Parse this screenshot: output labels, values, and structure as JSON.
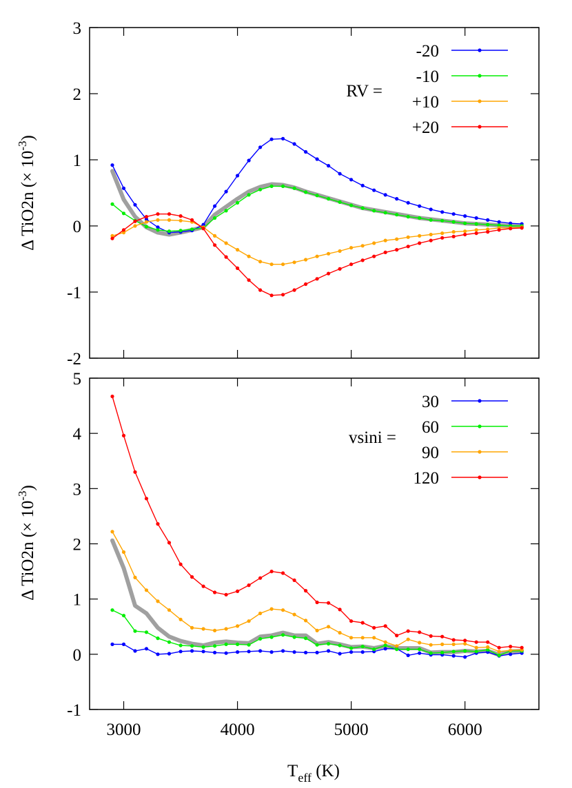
{
  "figure": {
    "xlabel_main": "T",
    "xlabel_sub": "eff",
    "xlabel_unit": " (K)"
  },
  "chart_data": [
    {
      "type": "line",
      "ylabel": "Δ TiO2n (× 10⁻³)",
      "ylabel_parts": {
        "main": "Δ TiO2n (× 10",
        "sup": "-3",
        "end": ")"
      },
      "xlim": [
        2700,
        6650
      ],
      "ylim": [
        -2,
        3
      ],
      "xticks": [
        3000,
        4000,
        5000,
        6000
      ],
      "yticks": [
        -2,
        -1,
        0,
        1,
        2,
        3
      ],
      "ytick_labels": [
        "-2",
        "-1",
        "0",
        "1",
        "2",
        "3"
      ],
      "legend_title": "RV =",
      "legend_position": "top-right",
      "x": [
        2900,
        3000,
        3100,
        3200,
        3300,
        3400,
        3500,
        3600,
        3700,
        3800,
        3900,
        4000,
        4100,
        4200,
        4300,
        4400,
        4500,
        4600,
        4700,
        4800,
        4900,
        5000,
        5100,
        5200,
        5300,
        5400,
        5500,
        5600,
        5700,
        5800,
        5900,
        6000,
        6100,
        6200,
        6300,
        6400,
        6500
      ],
      "series": [
        {
          "name": "-20",
          "color": "#0000ff",
          "values": [
            0.92,
            0.57,
            0.32,
            0.1,
            -0.02,
            -0.1,
            -0.09,
            -0.07,
            0.02,
            0.3,
            0.52,
            0.76,
            0.99,
            1.19,
            1.31,
            1.32,
            1.24,
            1.12,
            1.01,
            0.91,
            0.79,
            0.7,
            0.61,
            0.54,
            0.47,
            0.41,
            0.35,
            0.3,
            0.25,
            0.21,
            0.18,
            0.15,
            0.12,
            0.09,
            0.06,
            0.04,
            0.03
          ]
        },
        {
          "name": "-10",
          "color": "#00ee00",
          "values": [
            0.33,
            0.19,
            0.08,
            -0.01,
            -0.06,
            -0.08,
            -0.07,
            -0.05,
            -0.03,
            0.12,
            0.23,
            0.35,
            0.47,
            0.55,
            0.6,
            0.6,
            0.57,
            0.51,
            0.46,
            0.41,
            0.36,
            0.31,
            0.27,
            0.23,
            0.2,
            0.17,
            0.14,
            0.12,
            0.09,
            0.08,
            0.06,
            0.04,
            0.03,
            0.02,
            0.01,
            0.0,
            0.0
          ]
        },
        {
          "name": "+10",
          "color": "#ffa500",
          "values": [
            -0.15,
            -0.1,
            0.0,
            0.06,
            0.09,
            0.09,
            0.08,
            0.06,
            -0.02,
            -0.15,
            -0.26,
            -0.36,
            -0.46,
            -0.54,
            -0.58,
            -0.58,
            -0.55,
            -0.51,
            -0.46,
            -0.42,
            -0.38,
            -0.33,
            -0.3,
            -0.26,
            -0.22,
            -0.2,
            -0.17,
            -0.15,
            -0.13,
            -0.11,
            -0.09,
            -0.08,
            -0.06,
            -0.05,
            -0.03,
            -0.03,
            -0.02
          ]
        },
        {
          "name": "+20",
          "color": "#ff0000",
          "values": [
            -0.19,
            -0.06,
            0.07,
            0.14,
            0.18,
            0.18,
            0.15,
            0.09,
            -0.04,
            -0.29,
            -0.47,
            -0.64,
            -0.82,
            -0.97,
            -1.05,
            -1.04,
            -0.97,
            -0.88,
            -0.8,
            -0.72,
            -0.65,
            -0.58,
            -0.52,
            -0.46,
            -0.4,
            -0.36,
            -0.31,
            -0.26,
            -0.22,
            -0.18,
            -0.16,
            -0.13,
            -0.11,
            -0.09,
            -0.06,
            -0.04,
            -0.03
          ]
        },
        {
          "name": "",
          "color": "#a0a0a0",
          "role": "mean-band",
          "values": [
            0.83,
            0.4,
            0.14,
            -0.02,
            -0.1,
            -0.13,
            -0.1,
            -0.06,
            -0.02,
            0.17,
            0.29,
            0.41,
            0.52,
            0.59,
            0.63,
            0.62,
            0.58,
            0.52,
            0.47,
            0.42,
            0.37,
            0.32,
            0.27,
            0.24,
            0.21,
            0.18,
            0.15,
            0.12,
            0.1,
            0.08,
            0.06,
            0.04,
            0.03,
            0.02,
            0.01,
            0.0,
            -0.01
          ]
        }
      ]
    },
    {
      "type": "line",
      "ylabel": "Δ TiO2n (× 10⁻³)",
      "ylabel_parts": {
        "main": "Δ TiO2n (× 10",
        "sup": "-3",
        "end": ")"
      },
      "xlim": [
        2700,
        6650
      ],
      "ylim": [
        -1,
        5
      ],
      "xticks": [
        3000,
        4000,
        5000,
        6000
      ],
      "xtick_labels": [
        "3000",
        "4000",
        "5000",
        "6000"
      ],
      "yticks": [
        -1,
        0,
        1,
        2,
        3,
        4,
        5
      ],
      "ytick_labels": [
        "-1",
        "0",
        "1",
        "2",
        "3",
        "4",
        "5"
      ],
      "legend_title": "vsini =",
      "legend_position": "top-right",
      "x": [
        2900,
        3000,
        3100,
        3200,
        3300,
        3400,
        3500,
        3600,
        3700,
        3800,
        3900,
        4000,
        4100,
        4200,
        4300,
        4400,
        4500,
        4600,
        4700,
        4800,
        4900,
        5000,
        5100,
        5200,
        5300,
        5400,
        5500,
        5600,
        5700,
        5800,
        5900,
        6000,
        6100,
        6200,
        6300,
        6400,
        6500
      ],
      "series": [
        {
          "name": "30",
          "color": "#0000ff",
          "values": [
            0.18,
            0.18,
            0.06,
            0.1,
            0.0,
            0.01,
            0.05,
            0.06,
            0.05,
            0.03,
            0.02,
            0.04,
            0.05,
            0.06,
            0.04,
            0.06,
            0.04,
            0.03,
            0.03,
            0.06,
            0.01,
            0.04,
            0.04,
            0.05,
            0.1,
            0.1,
            -0.02,
            0.02,
            -0.01,
            -0.01,
            -0.03,
            -0.05,
            0.02,
            0.04,
            -0.03,
            0.0,
            0.02
          ]
        },
        {
          "name": "60",
          "color": "#00ee00",
          "values": [
            0.8,
            0.7,
            0.42,
            0.4,
            0.29,
            0.22,
            0.16,
            0.15,
            0.13,
            0.15,
            0.18,
            0.18,
            0.17,
            0.28,
            0.31,
            0.35,
            0.31,
            0.29,
            0.17,
            0.19,
            0.16,
            0.11,
            0.14,
            0.09,
            0.16,
            0.09,
            0.09,
            0.09,
            0.02,
            0.03,
            0.05,
            0.06,
            0.05,
            0.08,
            -0.02,
            0.06,
            0.06
          ]
        },
        {
          "name": "90",
          "color": "#ffa500",
          "values": [
            2.22,
            1.85,
            1.39,
            1.16,
            0.96,
            0.8,
            0.63,
            0.48,
            0.46,
            0.43,
            0.46,
            0.51,
            0.6,
            0.74,
            0.82,
            0.8,
            0.72,
            0.61,
            0.43,
            0.5,
            0.39,
            0.3,
            0.3,
            0.3,
            0.22,
            0.15,
            0.27,
            0.21,
            0.17,
            0.18,
            0.18,
            0.19,
            0.12,
            0.13,
            0.05,
            0.07,
            0.08
          ]
        },
        {
          "name": "120",
          "color": "#ff0000",
          "values": [
            4.67,
            3.96,
            3.3,
            2.82,
            2.36,
            2.02,
            1.63,
            1.4,
            1.23,
            1.12,
            1.08,
            1.14,
            1.25,
            1.38,
            1.5,
            1.47,
            1.34,
            1.15,
            0.94,
            0.93,
            0.81,
            0.6,
            0.57,
            0.48,
            0.51,
            0.34,
            0.42,
            0.4,
            0.33,
            0.32,
            0.26,
            0.25,
            0.22,
            0.22,
            0.12,
            0.14,
            0.12
          ]
        },
        {
          "name": "",
          "color": "#a0a0a0",
          "role": "mean-band",
          "values": [
            2.06,
            1.56,
            0.88,
            0.74,
            0.48,
            0.32,
            0.24,
            0.19,
            0.16,
            0.21,
            0.23,
            0.21,
            0.2,
            0.32,
            0.34,
            0.39,
            0.34,
            0.34,
            0.19,
            0.22,
            0.18,
            0.13,
            0.14,
            0.11,
            0.15,
            0.11,
            0.11,
            0.11,
            0.03,
            0.04,
            0.04,
            0.06,
            0.05,
            0.06,
            -0.01,
            0.05,
            0.06
          ]
        }
      ]
    }
  ]
}
